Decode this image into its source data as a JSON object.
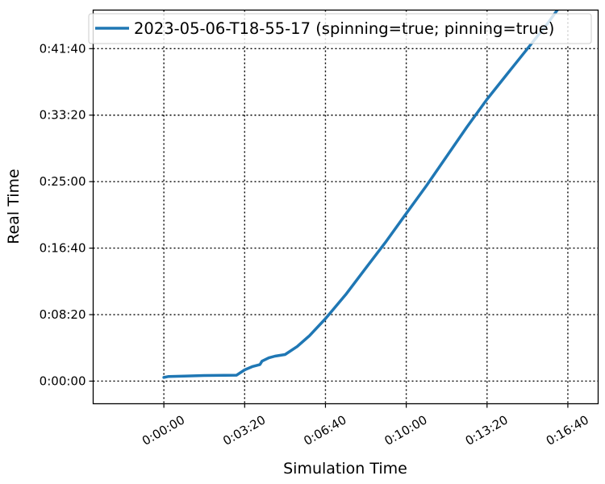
{
  "chart_data": {
    "type": "line",
    "xlabel": "Simulation Time",
    "ylabel": "Real Time",
    "xlim": [
      -175,
      1075
    ],
    "ylim": [
      -170,
      2790
    ],
    "x_ticks": [
      {
        "value": 0,
        "label": "0:00:00"
      },
      {
        "value": 200,
        "label": "0:03:20"
      },
      {
        "value": 400,
        "label": "0:06:40"
      },
      {
        "value": 600,
        "label": "0:10:00"
      },
      {
        "value": 800,
        "label": "0:13:20"
      },
      {
        "value": 1000,
        "label": "0:16:40"
      }
    ],
    "y_ticks": [
      {
        "value": 0,
        "label": "0:00:00"
      },
      {
        "value": 500,
        "label": "0:08:20"
      },
      {
        "value": 1000,
        "label": "0:16:40"
      },
      {
        "value": 1500,
        "label": "0:25:00"
      },
      {
        "value": 2000,
        "label": "0:33:20"
      },
      {
        "value": 2500,
        "label": "0:41:40"
      }
    ],
    "grid": true,
    "legend_position": "top-right",
    "series": [
      {
        "name": "2023-05-06-T18-55-17 (spinning=true; pinning=true)",
        "color": "#1f77b4",
        "x": [
          0,
          12,
          50,
          100,
          150,
          180,
          200,
          220,
          238,
          243,
          260,
          275,
          300,
          330,
          360,
          400,
          450,
          500,
          550,
          600,
          650,
          700,
          750,
          800,
          850,
          900,
          950,
          1000,
          1025,
          1060
        ],
        "y": [
          28,
          35,
          38,
          42,
          44,
          45,
          85,
          110,
          125,
          150,
          175,
          188,
          200,
          260,
          340,
          470,
          650,
          850,
          1050,
          1260,
          1470,
          1690,
          1910,
          2120,
          2310,
          2500,
          2690,
          2900,
          3000,
          3130
        ]
      }
    ]
  }
}
